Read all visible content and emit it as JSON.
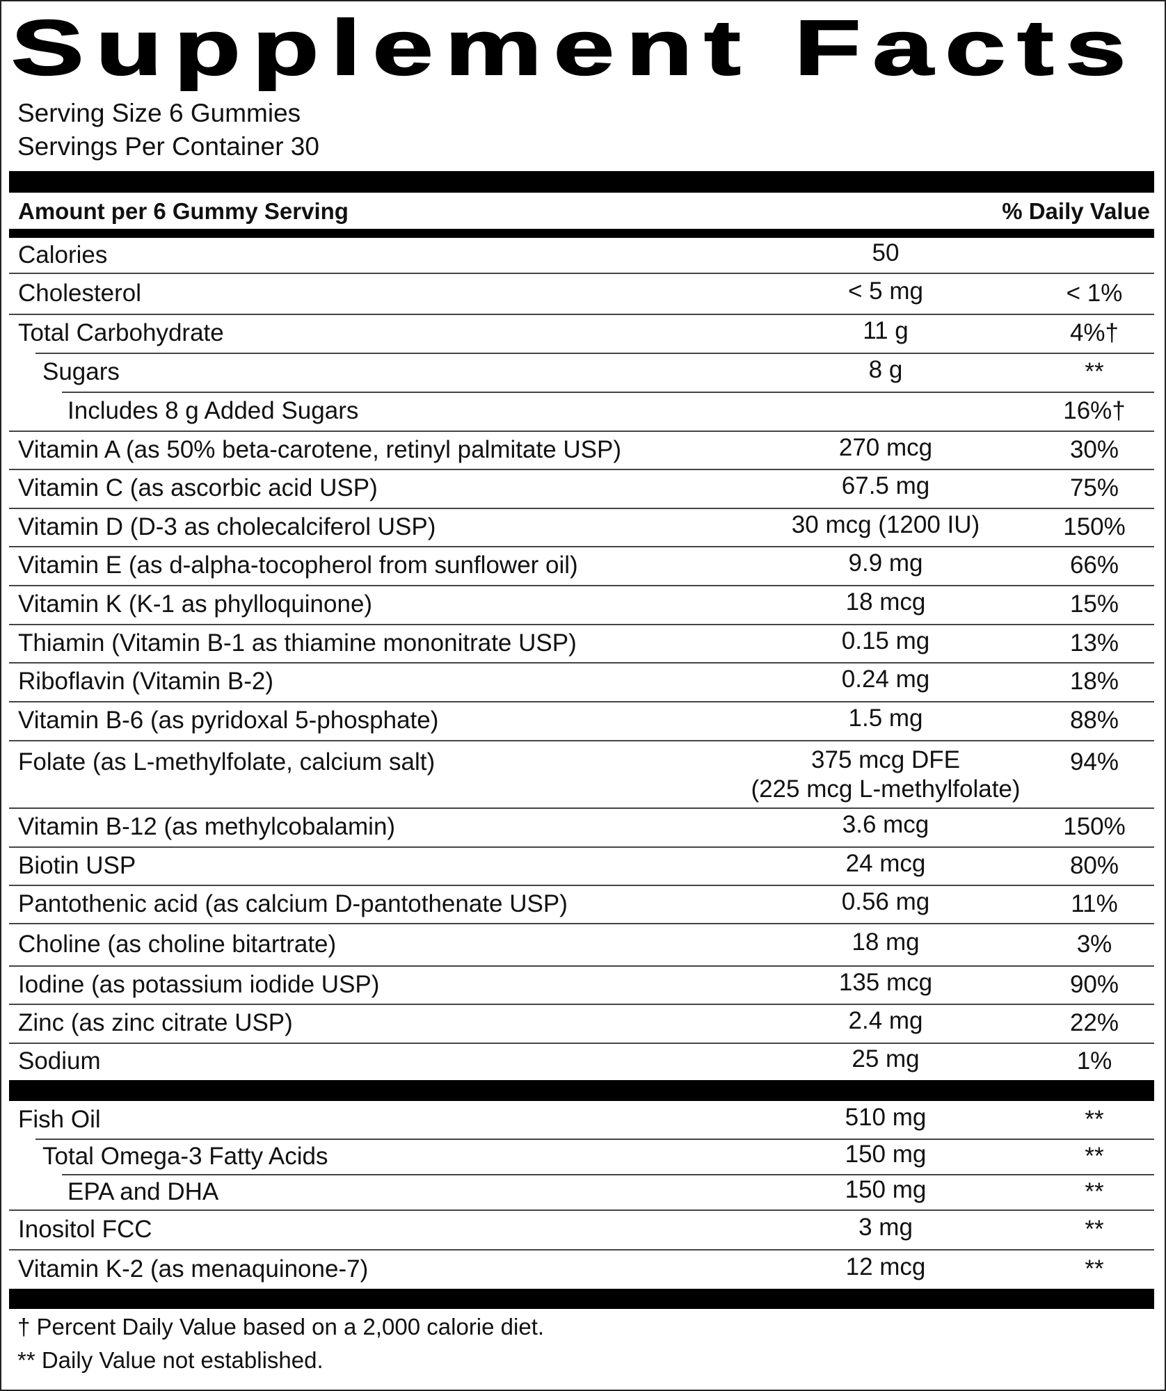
{
  "title": "Supplement Facts",
  "serving_size": "Serving Size 6 Gummies",
  "servings_per_container": "Servings Per Container 30",
  "header": {
    "amount_label": "Amount per 6 Gummy Serving",
    "dv_label": "% Daily Value"
  },
  "nutrients": [
    {
      "name": "Calories",
      "amount": "50",
      "dv": "",
      "indent": 0
    },
    {
      "name": "Cholesterol",
      "amount": "< 5 mg",
      "dv": "< 1%",
      "indent": 0
    },
    {
      "name": "Total Carbohydrate",
      "amount": "11 g",
      "dv": "4%†",
      "indent": 0
    },
    {
      "name": "Sugars",
      "amount": "8 g",
      "dv": "**",
      "indent": 1
    },
    {
      "name": "Includes 8 g Added Sugars",
      "amount": "",
      "dv": "16%†",
      "indent": 2
    },
    {
      "name": "Vitamin A (as 50% beta-carotene, retinyl palmitate USP)",
      "amount": "270 mcg",
      "dv": "30%",
      "indent": 0
    },
    {
      "name": "Vitamin C (as ascorbic acid USP)",
      "amount": "67.5 mg",
      "dv": "75%",
      "indent": 0
    },
    {
      "name": "Vitamin D (D-3 as cholecalciferol USP)",
      "amount": "30 mcg (1200 IU)",
      "dv": "150%",
      "indent": 0
    },
    {
      "name": "Vitamin E (as d-alpha-tocopherol from sunflower oil)",
      "amount": "9.9 mg",
      "dv": "66%",
      "indent": 0
    },
    {
      "name": "Vitamin K (K-1 as phylloquinone)",
      "amount": "18 mcg",
      "dv": "15%",
      "indent": 0
    },
    {
      "name": "Thiamin (Vitamin B-1 as thiamine mononitrate USP)",
      "amount": "0.15 mg",
      "dv": "13%",
      "indent": 0
    },
    {
      "name": "Riboflavin (Vitamin B-2)",
      "amount": "0.24 mg",
      "dv": "18%",
      "indent": 0
    },
    {
      "name": "Vitamin B-6 (as pyridoxal 5-phosphate)",
      "amount": "1.5 mg",
      "dv": "88%",
      "indent": 0
    },
    {
      "name": "Folate (as L-methylfolate, calcium salt)",
      "amount": "375 mcg DFE",
      "amount_sub": "(225 mcg L-methylfolate)",
      "dv": "94%",
      "indent": 0
    },
    {
      "name": "Vitamin B-12 (as methylcobalamin)",
      "amount": "3.6 mcg",
      "dv": "150%",
      "indent": 0
    },
    {
      "name": "Biotin USP",
      "amount": "24 mcg",
      "dv": "80%",
      "indent": 0
    },
    {
      "name": "Pantothenic acid (as calcium D-pantothenate USP)",
      "amount": "0.56 mg",
      "dv": "11%",
      "indent": 0
    },
    {
      "name": "Choline (as choline bitartrate)",
      "amount": "18 mg",
      "dv": "3%",
      "indent": 0
    },
    {
      "name": "Iodine (as potassium iodide USP)",
      "amount": "135 mcg",
      "dv": "90%",
      "indent": 0
    },
    {
      "name": "Zinc (as zinc citrate USP)",
      "amount": "2.4 mg",
      "dv": "22%",
      "indent": 0
    },
    {
      "name": "Sodium",
      "amount": "25 mg",
      "dv": "1%",
      "indent": 0
    }
  ],
  "other_ingredients": [
    {
      "name": "Fish Oil",
      "amount": "510 mg",
      "dv": "**",
      "indent": 0
    },
    {
      "name": "Total Omega-3 Fatty Acids",
      "amount": "150 mg",
      "dv": "**",
      "indent": 1
    },
    {
      "name": "EPA and DHA",
      "amount": "150 mg",
      "dv": "**",
      "indent": 2
    },
    {
      "name": "Inositol FCC",
      "amount": "3 mg",
      "dv": "**",
      "indent": 0
    },
    {
      "name": "Vitamin K-2 (as menaquinone-7)",
      "amount": "12 mcg",
      "dv": "**",
      "indent": 0
    }
  ],
  "footnotes": [
    "† Percent Daily Value based on a 2,000 calorie diet.",
    "** Daily Value not established."
  ]
}
